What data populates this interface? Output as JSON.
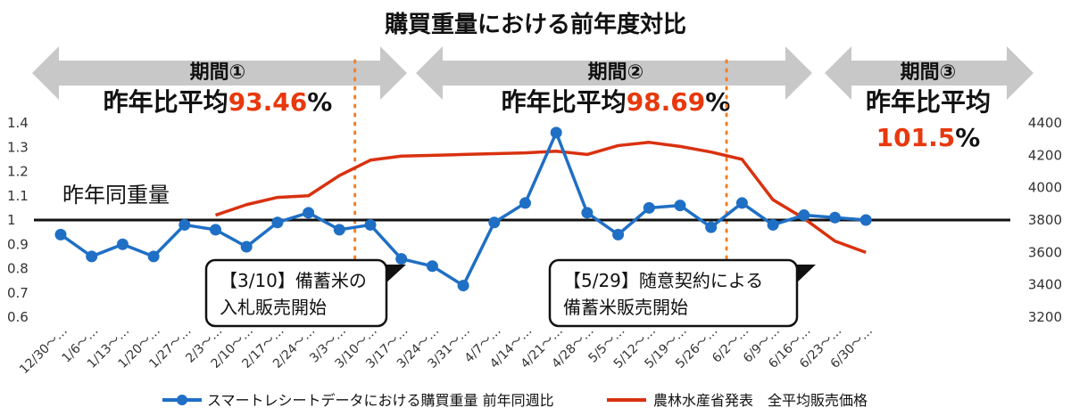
{
  "chart_data": {
    "type": "line",
    "title": "購買重量における前年度対比",
    "categories": [
      "12/30～…",
      "1/6～…",
      "1/13～…",
      "1/20～…",
      "1/27～…",
      "2/3～…",
      "2/10～…",
      "2/17～…",
      "2/24～…",
      "3/3～…",
      "3/10～…",
      "3/17～…",
      "3/24～…",
      "3/31～…",
      "4/7～…",
      "4/14～…",
      "4/21～…",
      "4/28～…",
      "5/5～…",
      "5/12～…",
      "5/19～…",
      "5/26～…",
      "6/2～…",
      "6/9～…",
      "6/16～…",
      "6/23～…",
      "6/30～…"
    ],
    "y_left": {
      "ticks": [
        "0.6",
        "0.7",
        "0.8",
        "0.9",
        "1",
        "1.1",
        "1.2",
        "1.3",
        "1.4"
      ],
      "ylim": [
        0.6,
        1.4
      ]
    },
    "y_right": {
      "ticks": [
        "3200",
        "3400",
        "3600",
        "3800",
        "4000",
        "4200",
        "4400"
      ],
      "ylim": [
        3200,
        4400
      ]
    },
    "series": [
      {
        "name": "スマートレシートデータにおける購買重量 前年同週比",
        "axis": "left",
        "color": "#1f6fc5",
        "values": [
          0.94,
          0.85,
          0.9,
          0.85,
          0.98,
          0.96,
          0.89,
          0.99,
          1.03,
          0.96,
          0.98,
          0.84,
          0.81,
          0.73,
          0.99,
          1.07,
          1.36,
          1.03,
          0.94,
          1.05,
          1.06,
          0.97,
          1.07,
          0.98,
          1.02,
          1.01,
          1.0
        ]
      },
      {
        "name": "農林水産省発表　全平均販売価格",
        "axis": "right",
        "color": "#d9310f",
        "values": [
          null,
          null,
          null,
          null,
          null,
          3830,
          3895,
          3940,
          3950,
          4075,
          4170,
          4195,
          4200,
          4205,
          4210,
          4215,
          4225,
          4205,
          4260,
          4280,
          4255,
          4220,
          4175,
          3925,
          3810,
          3670,
          3600
        ]
      }
    ],
    "reference_line": {
      "value": 1,
      "label": "昨年同重量"
    },
    "period_dividers_after": [
      9,
      21
    ],
    "periods": [
      {
        "label": "期間①",
        "avg_prefix": "昨年比平均",
        "avg_value": "93.46",
        "avg_unit": "%"
      },
      {
        "label": "期間②",
        "avg_prefix": "昨年比平均",
        "avg_value": "98.69",
        "avg_unit": "%"
      },
      {
        "label": "期間③",
        "avg_prefix": "昨年比平均",
        "avg_value": "101.5",
        "avg_unit": "%"
      }
    ],
    "annotations": [
      {
        "lines": [
          "【3/10】備蓄米の",
          "入札販売開始"
        ]
      },
      {
        "lines": [
          "【5/29】随意契約による",
          "備蓄米販売開始"
        ]
      }
    ],
    "grid": false,
    "legend_position": "bottom"
  }
}
